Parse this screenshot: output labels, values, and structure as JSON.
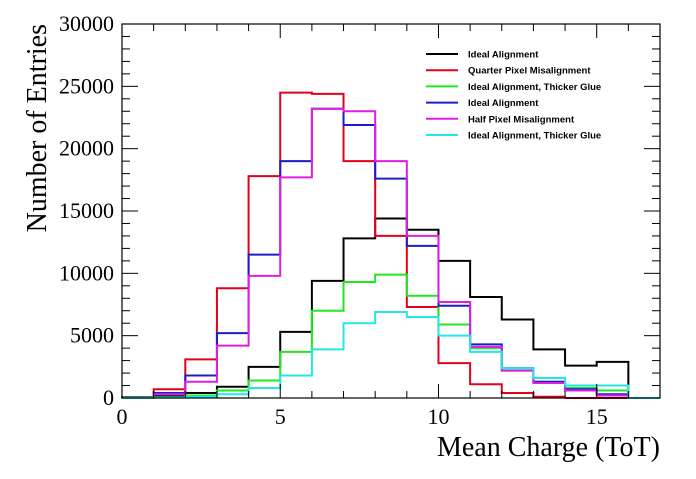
{
  "chart_data": {
    "type": "line",
    "style": "step-histogram",
    "xlabel": "Mean Charge (ToT)",
    "ylabel": "Number of Entries",
    "xlim": [
      0,
      17
    ],
    "ylim": [
      0,
      30000
    ],
    "x_ticks": [
      0,
      5,
      10,
      15
    ],
    "y_ticks": [
      0,
      5000,
      10000,
      15000,
      20000,
      25000,
      30000
    ],
    "grid": false,
    "legend_position": "top-right",
    "bin_edges": [
      0,
      1,
      2,
      3,
      4,
      5,
      6,
      7,
      8,
      9,
      10,
      11,
      12,
      13,
      14,
      15,
      16,
      17
    ],
    "series": [
      {
        "name": "Ideal Alignment",
        "color": "#000000",
        "values": [
          50,
          150,
          400,
          900,
          2500,
          5300,
          9400,
          12800,
          14400,
          13500,
          11000,
          8100,
          6300,
          3900,
          2600,
          2900,
          0
        ]
      },
      {
        "name": "Quarter Pixel Misalignment",
        "color": "#e3001b",
        "values": [
          0,
          700,
          3100,
          8800,
          17800,
          24500,
          24400,
          19000,
          13000,
          7300,
          2800,
          1100,
          400,
          100,
          0,
          0,
          0
        ]
      },
      {
        "name": "Ideal Alignment, Thicker Glue",
        "color": "#1ee81e",
        "values": [
          0,
          50,
          200,
          600,
          1400,
          3700,
          7000,
          9300,
          9900,
          8200,
          5900,
          4000,
          2200,
          1300,
          800,
          600,
          0
        ]
      },
      {
        "name": "Ideal Alignment",
        "color": "#1c1ccf",
        "values": [
          0,
          400,
          1800,
          5200,
          11500,
          19000,
          23200,
          21900,
          17600,
          12200,
          7400,
          4300,
          2400,
          1300,
          700,
          300,
          0
        ]
      },
      {
        "name": "Half Pixel Misalignment",
        "color": "#e01ee0",
        "values": [
          0,
          300,
          1300,
          4200,
          9800,
          17700,
          23200,
          23000,
          19000,
          13000,
          7700,
          4100,
          2200,
          1200,
          600,
          200,
          0
        ]
      },
      {
        "name": "Ideal Alignment, Thicker Glue",
        "color": "#25e6e6",
        "values": [
          0,
          30,
          100,
          300,
          800,
          1800,
          3900,
          6000,
          6900,
          6500,
          5000,
          3700,
          2400,
          1600,
          1000,
          1000,
          0
        ]
      }
    ]
  }
}
